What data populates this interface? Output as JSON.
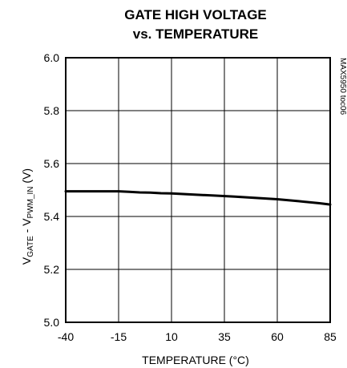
{
  "chart_data": {
    "type": "line",
    "title_line1": "GATE HIGH VOLTAGE",
    "title_line2": "vs. TEMPERATURE",
    "xlabel": "TEMPERATURE (°C)",
    "ylabel_main": "V",
    "ylabel_sub1": "GATE",
    "ylabel_mid": " - V",
    "ylabel_sub2": "PWM_IN",
    "ylabel_unit": " (V)",
    "side_note": "MAX5950 toc06",
    "xlim": [
      -40,
      85
    ],
    "ylim": [
      5.0,
      6.0
    ],
    "x_ticks": [
      -40,
      -15,
      10,
      35,
      60,
      85
    ],
    "x_tick_labels": [
      "-40",
      "-15",
      "10",
      "35",
      "60",
      "85"
    ],
    "y_ticks": [
      5.0,
      5.2,
      5.4,
      5.6,
      5.8,
      6.0
    ],
    "y_tick_labels": [
      "5.0",
      "5.2",
      "5.4",
      "5.6",
      "5.8",
      "6.0"
    ],
    "grid": true,
    "series": [
      {
        "x": [
          -40,
          -30,
          -20,
          -15,
          -10,
          -5,
          0,
          5,
          10,
          20,
          30,
          40,
          50,
          60,
          70,
          80,
          85
        ],
        "y": [
          5.495,
          5.495,
          5.495,
          5.495,
          5.493,
          5.491,
          5.49,
          5.488,
          5.487,
          5.483,
          5.479,
          5.475,
          5.47,
          5.465,
          5.458,
          5.45,
          5.445
        ]
      }
    ],
    "colors": {
      "line": "#000000",
      "grid": "#000000",
      "frame": "#000000"
    }
  }
}
